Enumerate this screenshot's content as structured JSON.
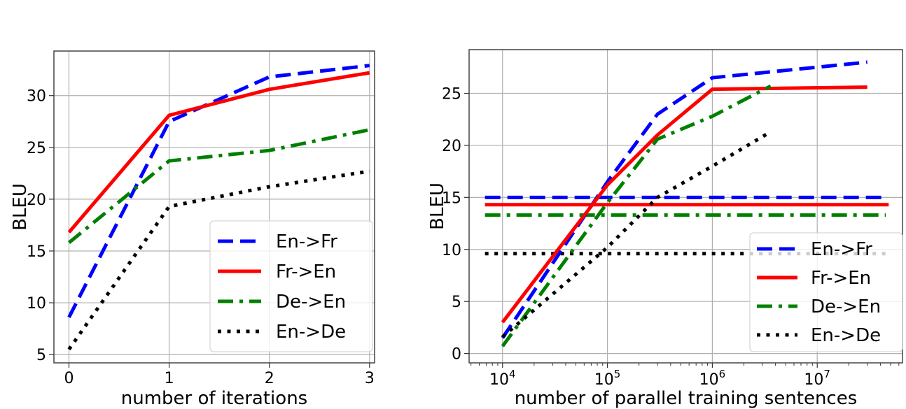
{
  "chart_data": [
    {
      "type": "line",
      "title": "",
      "xlabel": "number of iterations",
      "ylabel": "BLEU",
      "xscale": "linear",
      "xlim": [
        -0.15,
        3.05
      ],
      "ylim": [
        4.2,
        34.3
      ],
      "xticks": [
        0,
        1,
        2,
        3
      ],
      "xtick_labels": [
        "0",
        "1",
        "2",
        "3"
      ],
      "yticks": [
        5,
        10,
        15,
        20,
        25,
        30
      ],
      "ytick_labels": [
        "5",
        "10",
        "15",
        "20",
        "25",
        "30"
      ],
      "grid": true,
      "legend_position": "lower-right",
      "x": [
        0,
        1,
        2,
        3
      ],
      "series": [
        {
          "name": "En->Fr",
          "color": "#0000ff",
          "style": "dashed",
          "values": [
            8.6,
            27.5,
            31.8,
            32.9
          ]
        },
        {
          "name": "Fr->En",
          "color": "#ff0000",
          "style": "solid",
          "values": [
            16.8,
            28.1,
            30.6,
            32.2
          ]
        },
        {
          "name": "De->En",
          "color": "#008000",
          "style": "dashdot",
          "values": [
            15.8,
            23.7,
            24.7,
            26.7
          ]
        },
        {
          "name": "En->De",
          "color": "#000000",
          "style": "dotted",
          "values": [
            5.5,
            19.3,
            21.2,
            22.7
          ]
        }
      ]
    },
    {
      "type": "line",
      "title": "",
      "xlabel": "number of parallel training sentences",
      "ylabel": "BLEU",
      "xscale": "log",
      "xlim": [
        4800,
        65000000
      ],
      "ylim": [
        -0.9,
        29.2
      ],
      "xticks": [
        10000,
        100000,
        1000000,
        10000000
      ],
      "xtick_labels": [
        {
          "base": "10",
          "exp": "4"
        },
        {
          "base": "10",
          "exp": "5"
        },
        {
          "base": "10",
          "exp": "6"
        },
        {
          "base": "10",
          "exp": "7"
        }
      ],
      "yticks": [
        0,
        5,
        10,
        15,
        20,
        25
      ],
      "ytick_labels": [
        "0",
        "5",
        "10",
        "15",
        "20",
        "25"
      ],
      "grid": true,
      "legend_position": "lower-right",
      "series": [
        {
          "name": "En->Fr",
          "color": "#0000ff",
          "style": "dashed",
          "x": [
            10000,
            100000,
            300000,
            1000000,
            30000000
          ],
          "values": [
            1.5,
            16.5,
            23.0,
            26.5,
            28.0
          ]
        },
        {
          "name": "Fr->En",
          "color": "#ff0000",
          "style": "solid",
          "x": [
            10000,
            100000,
            300000,
            1000000,
            30000000
          ],
          "values": [
            3.0,
            16.2,
            21.0,
            25.4,
            25.6
          ]
        },
        {
          "name": "De->En",
          "color": "#008000",
          "style": "dashdot",
          "x": [
            10000,
            100000,
            300000,
            1000000,
            3600000
          ],
          "values": [
            0.7,
            14.5,
            20.6,
            22.8,
            25.7
          ]
        },
        {
          "name": "En->De",
          "color": "#000000",
          "style": "dotted",
          "x": [
            10000,
            100000,
            300000,
            1000000,
            3600000
          ],
          "values": [
            1.6,
            10.2,
            15.0,
            18.0,
            21.3
          ]
        }
      ],
      "baselines": [
        {
          "name": "En->Fr baseline",
          "color": "#0000ff",
          "style": "dashed",
          "value": 15.0,
          "x_range": [
            6800,
            45000000
          ]
        },
        {
          "name": "Fr->En baseline",
          "color": "#ff0000",
          "style": "solid",
          "value": 14.3,
          "x_range": [
            6800,
            48000000
          ]
        },
        {
          "name": "De->En baseline",
          "color": "#008000",
          "style": "dashdot",
          "value": 13.3,
          "x_range": [
            6800,
            45000000
          ]
        },
        {
          "name": "En->De baseline",
          "color": "#000000",
          "style": "dotted",
          "value": 9.6,
          "x_range": [
            6800,
            45000000
          ]
        }
      ]
    }
  ]
}
